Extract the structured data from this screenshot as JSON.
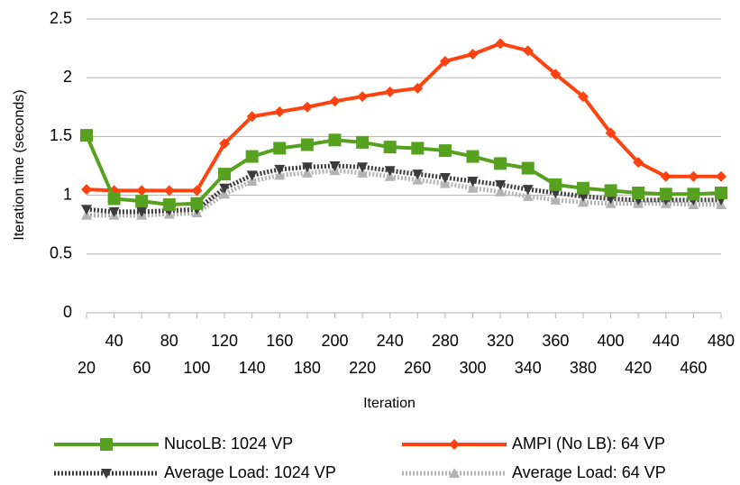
{
  "chart_data": {
    "type": "line",
    "title": "",
    "xlabel": "Iteration",
    "ylabel": "Iteration time (seconds)",
    "ylim": [
      0,
      2.5
    ],
    "yticks": [
      "0",
      "0.5",
      "1",
      "1.5",
      "2",
      "2.5"
    ],
    "grid": "horizontal",
    "legend_position": "bottom",
    "x": [
      20,
      40,
      60,
      80,
      100,
      120,
      140,
      160,
      180,
      200,
      220,
      240,
      260,
      280,
      300,
      320,
      340,
      360,
      380,
      400,
      420,
      440,
      460,
      480
    ],
    "series": [
      {
        "name": "NucoLB: 1024 VP",
        "color": "#57a121",
        "marker": "square",
        "line": "solid",
        "values": [
          1.51,
          0.97,
          0.95,
          0.92,
          0.93,
          1.18,
          1.33,
          1.4,
          1.43,
          1.47,
          1.45,
          1.41,
          1.4,
          1.38,
          1.33,
          1.27,
          1.23,
          1.09,
          1.06,
          1.04,
          1.02,
          1.01,
          1.01,
          1.02
        ]
      },
      {
        "name": "AMPI (No LB): 64 VP",
        "color": "#ff420e",
        "marker": "diamond",
        "line": "solid",
        "values": [
          1.05,
          1.04,
          1.04,
          1.04,
          1.04,
          1.44,
          1.67,
          1.71,
          1.75,
          1.8,
          1.84,
          1.88,
          1.91,
          2.14,
          2.2,
          2.29,
          2.23,
          2.03,
          1.84,
          1.53,
          1.28,
          1.16,
          1.16,
          1.16
        ]
      },
      {
        "name": "Average Load: 1024 VP",
        "color": "#3b3b3b",
        "marker": "triangle-down",
        "line": "dotted",
        "values": [
          0.88,
          0.86,
          0.86,
          0.87,
          0.88,
          1.06,
          1.17,
          1.22,
          1.24,
          1.25,
          1.24,
          1.21,
          1.18,
          1.15,
          1.12,
          1.09,
          1.05,
          1.02,
          0.99,
          0.97,
          0.96,
          0.96,
          0.96,
          0.96
        ]
      },
      {
        "name": "Average Load: 64 VP",
        "color": "#b3b3b3",
        "marker": "triangle-up",
        "line": "dotted",
        "values": [
          0.83,
          0.83,
          0.83,
          0.84,
          0.85,
          1.01,
          1.12,
          1.17,
          1.19,
          1.21,
          1.19,
          1.16,
          1.13,
          1.1,
          1.06,
          1.03,
          0.99,
          0.96,
          0.94,
          0.93,
          0.93,
          0.93,
          0.92,
          0.92
        ]
      }
    ]
  }
}
